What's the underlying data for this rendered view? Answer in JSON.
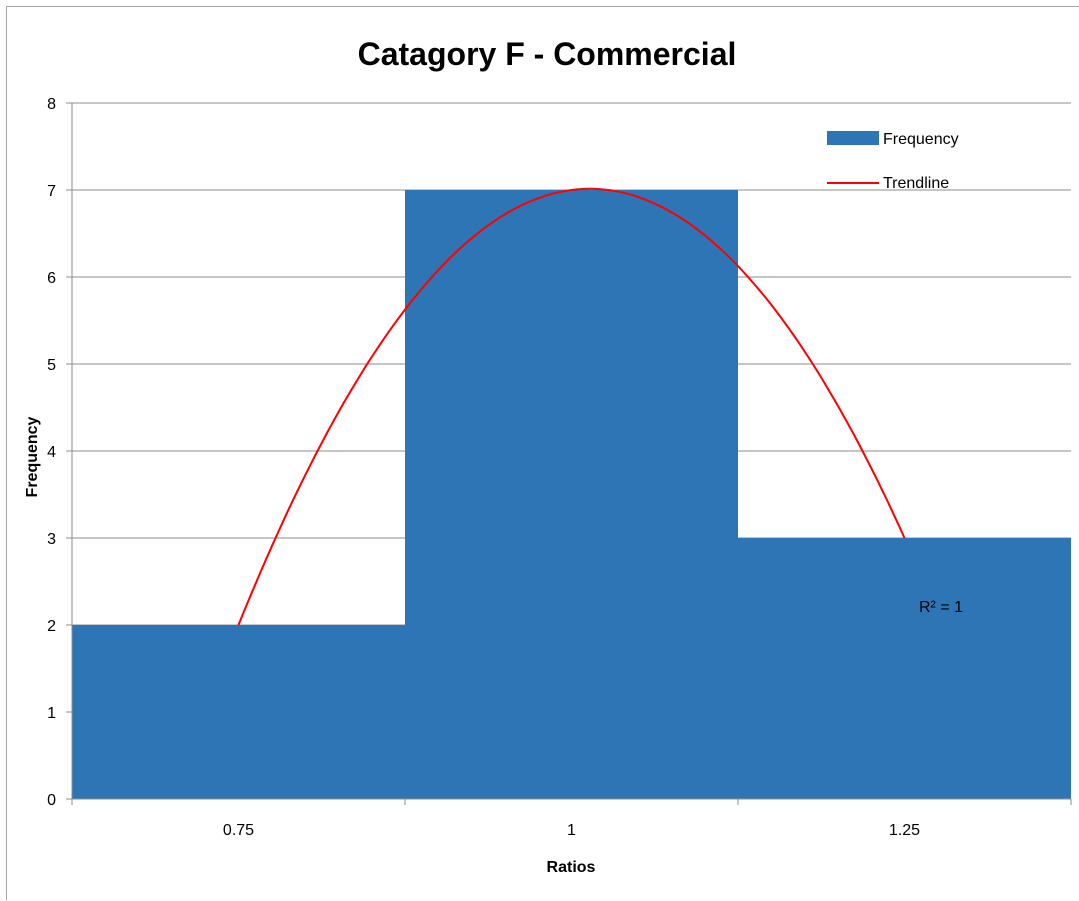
{
  "chart_data": {
    "type": "bar",
    "title": "Catagory F - Commercial",
    "xlabel": "Ratios",
    "ylabel": "Frequency",
    "categories": [
      "0.75",
      "1",
      "1.25"
    ],
    "series": [
      {
        "name": "Frequency",
        "type": "bar",
        "values": [
          2,
          7,
          3
        ],
        "color": "#2e75b6"
      },
      {
        "name": "Trendline",
        "type": "line",
        "fit": "polynomial-2",
        "values": [
          2,
          7,
          3
        ],
        "color": "#ff0000"
      }
    ],
    "ylim": [
      0,
      8
    ],
    "yticks": [
      0,
      1,
      2,
      3,
      4,
      5,
      6,
      7,
      8
    ],
    "grid": true,
    "legend": {
      "position": "top-right",
      "entries": [
        "Frequency",
        "Trendline"
      ]
    },
    "annotations": [
      {
        "text": "R² = 1"
      }
    ]
  }
}
